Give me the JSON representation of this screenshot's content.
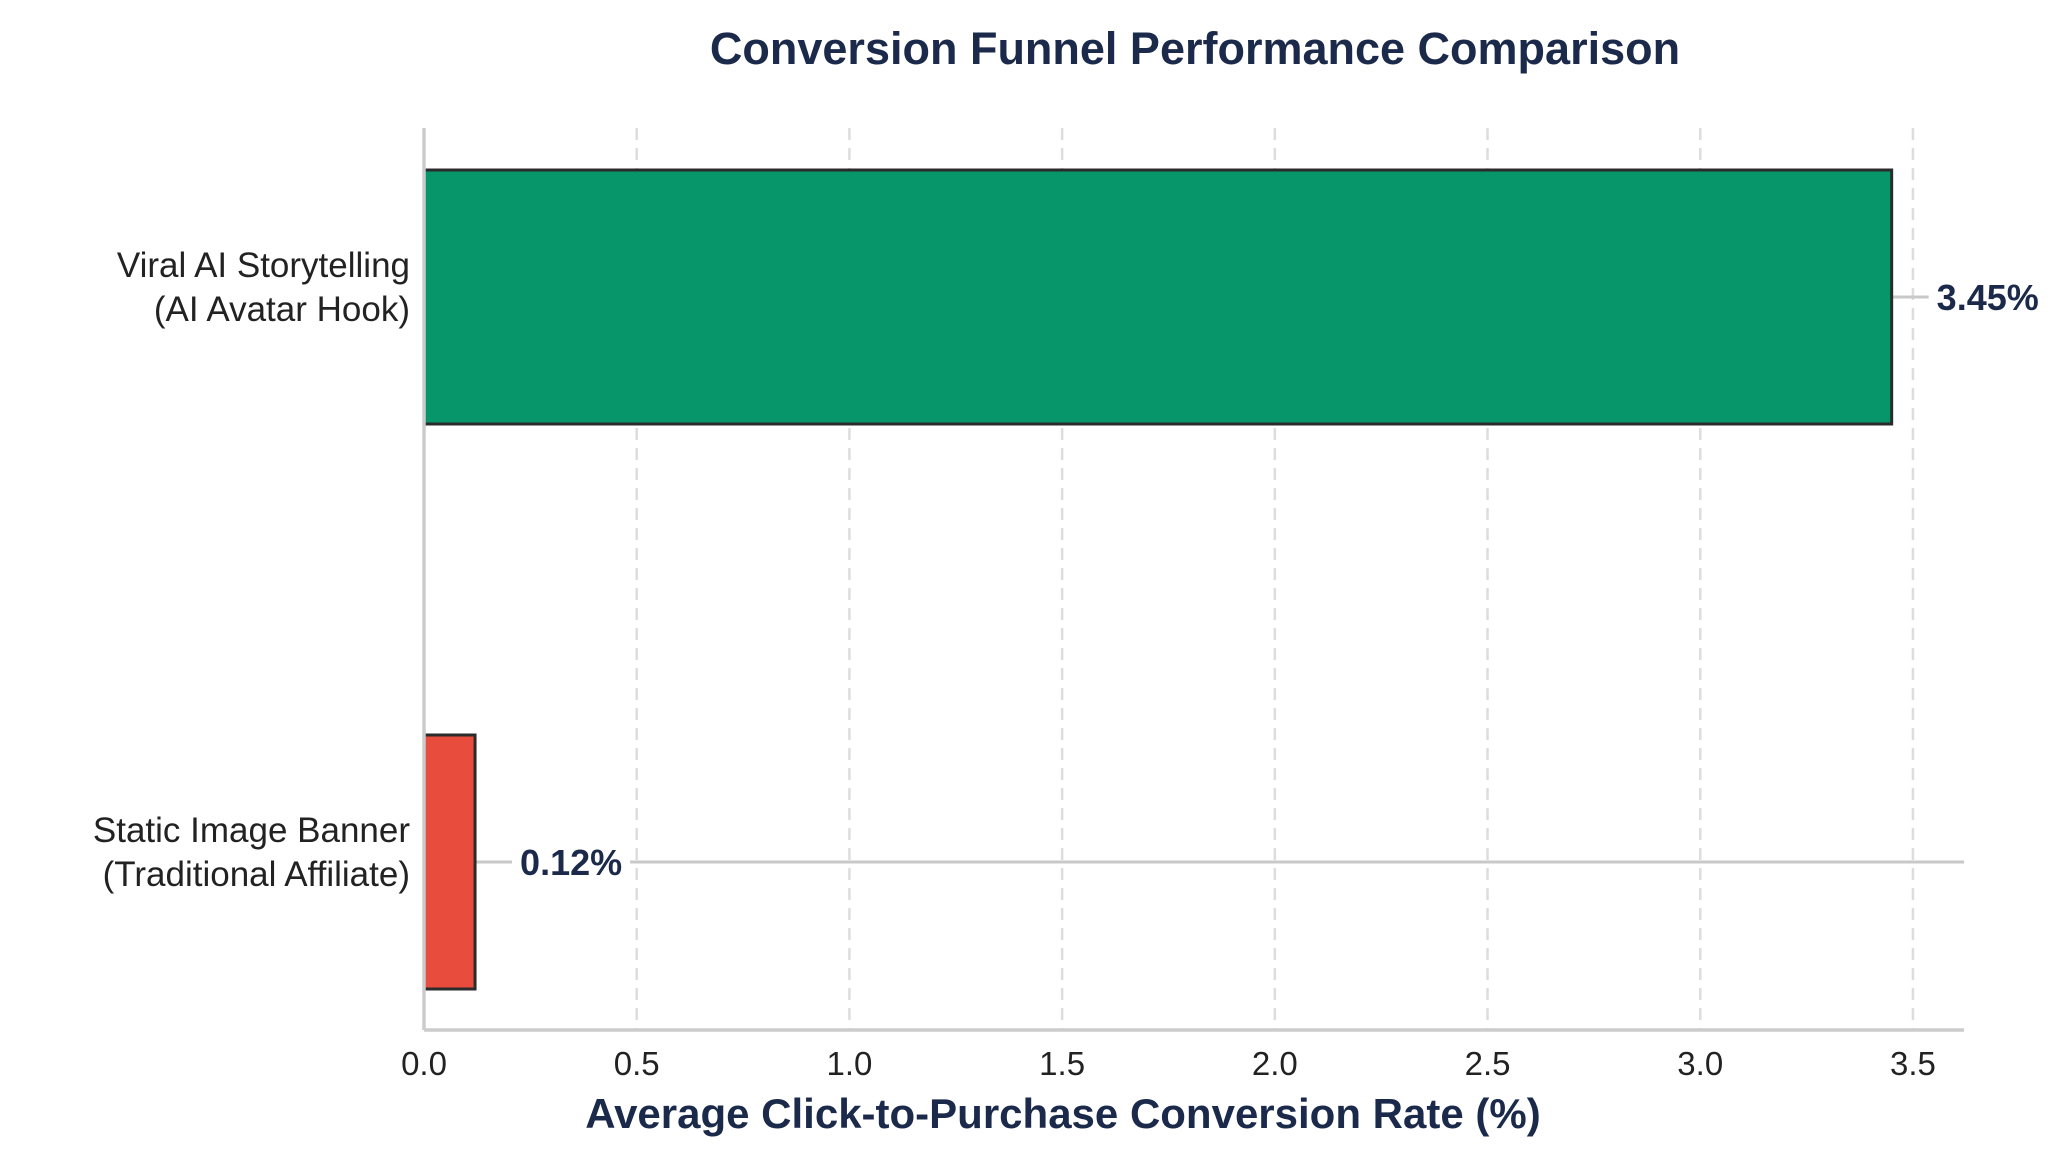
{
  "chart_data": {
    "type": "bar",
    "orientation": "horizontal",
    "title": "Conversion Funnel Performance Comparison",
    "xlabel": "Average Click-to-Purchase Conversion Rate (%)",
    "ylabel": "",
    "xlim": [
      0,
      3.62
    ],
    "x_ticks": [
      "0.0",
      "0.5",
      "1.0",
      "1.5",
      "2.0",
      "2.5",
      "3.0",
      "3.5"
    ],
    "x_tick_values": [
      0,
      0.5,
      1.0,
      1.5,
      2.0,
      2.5,
      3.0,
      3.5
    ],
    "grid": "x dashed",
    "categories": [
      [
        "Viral AI Storytelling",
        "(AI Avatar Hook)"
      ],
      [
        "Static Image Banner",
        "(Traditional Affiliate)"
      ]
    ],
    "values": [
      3.45,
      0.12
    ],
    "value_labels": [
      "3.45%",
      "0.12%"
    ],
    "colors": [
      "#079669",
      "#e74c3c"
    ]
  },
  "style": {
    "title_color": "#1b2a4a",
    "text_color": "#222222",
    "edge_color": "#2b2b2b",
    "grid_color": "#dddddd",
    "axis_color": "#cccccc",
    "leader_color": "#c8c8c8"
  }
}
